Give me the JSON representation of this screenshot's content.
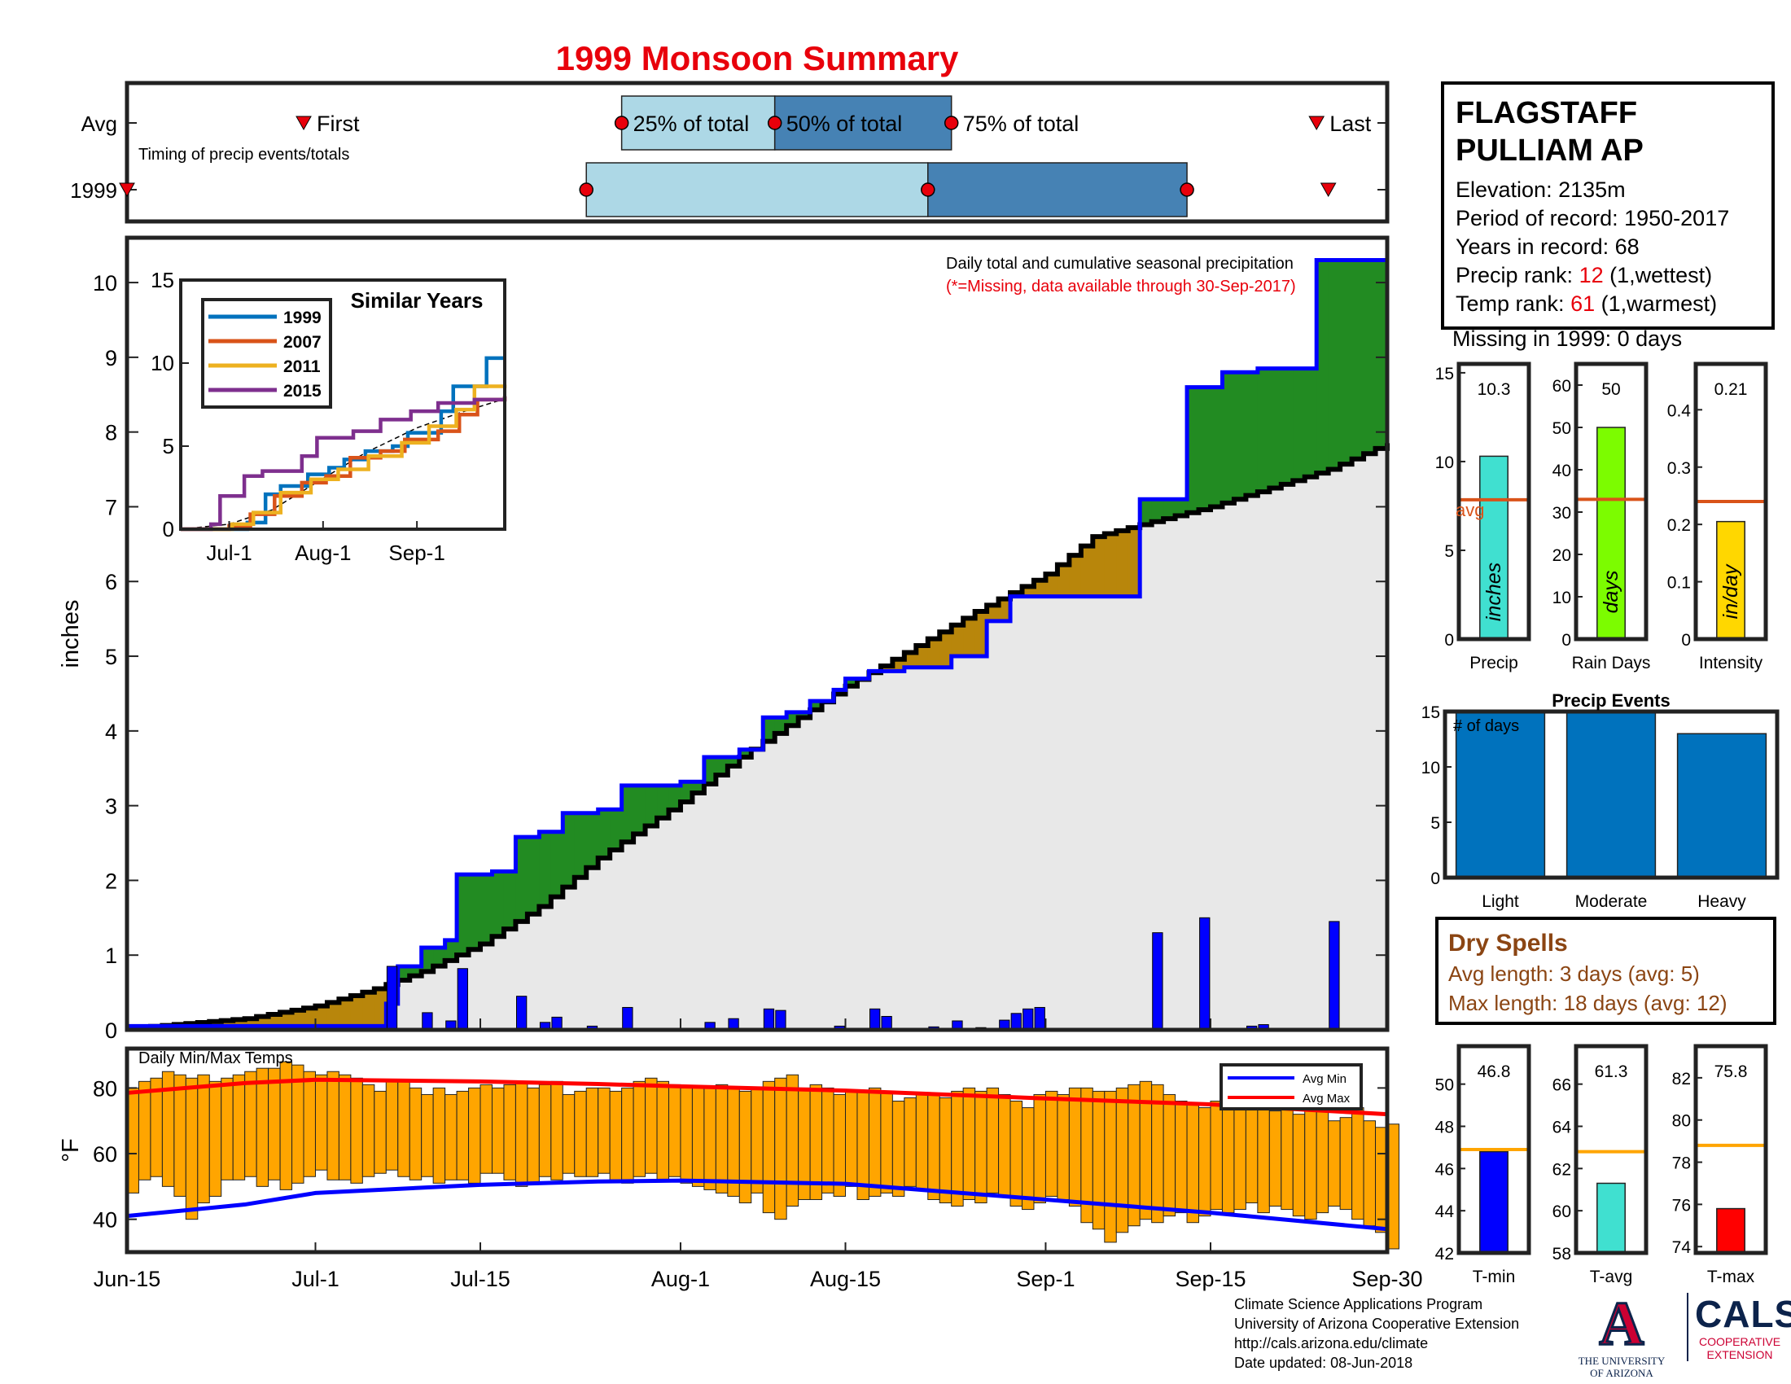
{
  "title": "1999 Monsoon Summary",
  "station": {
    "name_line1": "FLAGSTAFF",
    "name_line2": "PULLIAM AP",
    "elevation": "Elevation: 2135m",
    "period": "Period of record: 1950-2017",
    "years": "Years in record: 68",
    "precip_rank_label": "Precip rank: ",
    "precip_rank_value": "12",
    "precip_rank_note": " (1,wettest)",
    "temp_rank_label": "Temp rank: ",
    "temp_rank_value": "61",
    "temp_rank_note": " (1,warmest)",
    "missing": "Missing in 1999: 0 days"
  },
  "dry_spells": {
    "title": "Dry Spells",
    "avg_length": "Avg length: 3 days (avg: 5)",
    "max_length": "Max length: 18 days (avg: 12)"
  },
  "credits": {
    "line1": "Climate Science Applications Program",
    "line2": "University of Arizona Cooperative Extension",
    "line3": "http://cals.arizona.edu/climate",
    "line4": " Date updated: 08-Jun-2018"
  },
  "logos": {
    "ua_mark": "A",
    "ua_line1": "THE UNIVERSITY",
    "ua_line2": "OF ARIZONA",
    "cals_mark": "CALS",
    "cals_line1": "COOPERATIVE",
    "cals_line2": "EXTENSION"
  },
  "colors": {
    "title": "#e8000b",
    "wet_fill": "#228b22",
    "dry_fill": "#b8860b",
    "season_line": "#0000ff",
    "avg_line": "#000000",
    "normal_fill": "#e8e8e8",
    "bar_light": "#add8e6",
    "bar_dark": "#4682b4",
    "temp_bar": "#ffa500",
    "avg_max": "#ff0000",
    "avg_min": "#0000ff",
    "dry_text": "#8b4513"
  },
  "chart_data": [
    {
      "id": "timing",
      "type": "table",
      "row_labels": [
        "Avg",
        "1999"
      ],
      "note": "Timing of precip events/totals",
      "avg_markers": {
        "first": "First",
        "q25": "25% of total",
        "q50": "50% of total",
        "q75": "75% of total",
        "last": "Last"
      },
      "avg_dates": {
        "first": "2017-06-30",
        "q25": "2017-07-27",
        "q50": "2017-08-09",
        "q75": "2017-08-24",
        "last": "2017-09-24"
      },
      "year_dates": {
        "first": "2017-06-15",
        "q25": "2017-07-24",
        "q50": "2017-08-22",
        "q75": "2017-09-13",
        "last": "2017-09-25"
      },
      "xlim": [
        "2017-06-15",
        "2017-09-30"
      ]
    },
    {
      "id": "cumulative",
      "type": "area",
      "note_title": "Daily total and cumulative seasonal precipitation",
      "note_missing": "(*=Missing, data available through 30-Sep-2017)",
      "ylabel": "inches",
      "ylim": [
        0,
        10.6
      ],
      "yticks": [
        0,
        1,
        2,
        3,
        4,
        5,
        6,
        7,
        8,
        9,
        10
      ],
      "xlim": [
        "2017-06-15",
        "2017-09-30"
      ],
      "xticks": [
        {
          "date": "2017-06-15",
          "label": "Jun-15"
        },
        {
          "date": "2017-07-01",
          "label": "Jul-1"
        },
        {
          "date": "2017-07-15",
          "label": "Jul-15"
        },
        {
          "date": "2017-08-01",
          "label": "Aug-1"
        },
        {
          "date": "2017-08-15",
          "label": "Aug-15"
        },
        {
          "date": "2017-09-01",
          "label": "Sep-1"
        },
        {
          "date": "2017-09-15",
          "label": "Sep-15"
        },
        {
          "date": "2017-09-30",
          "label": "Sep-30"
        }
      ],
      "avg_cumulative": {
        "x": [
          "2017-06-15",
          "2017-06-25",
          "2017-07-01",
          "2017-07-06",
          "2017-07-10",
          "2017-07-15",
          "2017-07-20",
          "2017-07-25",
          "2017-08-01",
          "2017-08-06",
          "2017-08-15",
          "2017-08-20",
          "2017-08-26",
          "2017-09-01",
          "2017-09-05",
          "2017-09-15",
          "2017-09-25",
          "2017-09-30"
        ],
        "y": [
          0.02,
          0.15,
          0.32,
          0.55,
          0.78,
          1.15,
          1.65,
          2.3,
          3.05,
          3.65,
          4.6,
          5.05,
          5.6,
          6.1,
          6.6,
          7.0,
          7.5,
          7.85
        ]
      },
      "year_cumulative": {
        "x": [
          "2017-06-15",
          "2017-07-07",
          "2017-07-08",
          "2017-07-10",
          "2017-07-12",
          "2017-07-13",
          "2017-07-16",
          "2017-07-18",
          "2017-07-20",
          "2017-07-22",
          "2017-07-25",
          "2017-07-27",
          "2017-08-01",
          "2017-08-03",
          "2017-08-06",
          "2017-08-08",
          "2017-08-10",
          "2017-08-12",
          "2017-08-14",
          "2017-08-15",
          "2017-08-17",
          "2017-08-20",
          "2017-08-24",
          "2017-08-27",
          "2017-08-29",
          "2017-09-09",
          "2017-09-13",
          "2017-09-16",
          "2017-09-19",
          "2017-09-24",
          "2017-09-30"
        ],
        "y": [
          0.05,
          0.35,
          0.85,
          1.1,
          1.2,
          2.08,
          2.12,
          2.58,
          2.65,
          2.9,
          2.95,
          3.27,
          3.32,
          3.65,
          3.75,
          4.18,
          4.25,
          4.4,
          4.55,
          4.7,
          4.8,
          4.85,
          5.0,
          5.47,
          5.8,
          7.1,
          8.6,
          8.8,
          8.85,
          10.3,
          10.3
        ]
      },
      "daily": {
        "x": [
          "2017-07-07",
          "2017-07-10",
          "2017-07-12",
          "2017-07-13",
          "2017-07-18",
          "2017-07-20",
          "2017-07-21",
          "2017-07-24",
          "2017-07-27",
          "2017-08-03",
          "2017-08-05",
          "2017-08-08",
          "2017-08-09",
          "2017-08-14",
          "2017-08-17",
          "2017-08-18",
          "2017-08-22",
          "2017-08-24",
          "2017-08-26",
          "2017-08-28",
          "2017-08-29",
          "2017-08-30",
          "2017-08-31",
          "2017-09-10",
          "2017-09-14",
          "2017-09-18",
          "2017-09-19",
          "2017-09-25"
        ],
        "y": [
          0.85,
          0.23,
          0.12,
          0.82,
          0.45,
          0.1,
          0.17,
          0.05,
          0.3,
          0.1,
          0.15,
          0.28,
          0.26,
          0.05,
          0.28,
          0.18,
          0.04,
          0.12,
          0.03,
          0.13,
          0.22,
          0.28,
          0.3,
          1.3,
          1.5,
          0.05,
          0.07,
          1.45
        ]
      }
    },
    {
      "id": "similar_years",
      "type": "line",
      "title": "Similar Years",
      "ylim": [
        0,
        15
      ],
      "yticks": [
        0,
        5,
        10,
        15
      ],
      "xlim": [
        "2017-06-15",
        "2017-09-30"
      ],
      "xticks": [
        {
          "date": "2017-07-01",
          "label": "Jul-1"
        },
        {
          "date": "2017-08-01",
          "label": "Aug-1"
        },
        {
          "date": "2017-09-01",
          "label": "Sep-1"
        }
      ],
      "avg": {
        "x": [
          "2017-06-15",
          "2017-07-01",
          "2017-07-15",
          "2017-08-01",
          "2017-08-15",
          "2017-09-01",
          "2017-09-15",
          "2017-09-30"
        ],
        "y": [
          0,
          0.3,
          1.15,
          3.05,
          4.6,
          6.1,
          7.0,
          7.85
        ]
      },
      "series": [
        {
          "name": "1999",
          "color": "#0072bd",
          "x": [
            "2017-06-15",
            "2017-07-07",
            "2017-07-13",
            "2017-07-18",
            "2017-07-27",
            "2017-08-03",
            "2017-08-08",
            "2017-08-15",
            "2017-08-24",
            "2017-08-29",
            "2017-09-09",
            "2017-09-13",
            "2017-09-24",
            "2017-09-30"
          ],
          "y": [
            0,
            0.4,
            2.1,
            2.6,
            3.3,
            3.7,
            4.2,
            4.7,
            5.0,
            5.8,
            7.1,
            8.6,
            10.3,
            10.3
          ]
        },
        {
          "name": "2007",
          "color": "#d95319",
          "x": [
            "2017-06-15",
            "2017-07-01",
            "2017-07-08",
            "2017-07-16",
            "2017-07-25",
            "2017-08-02",
            "2017-08-10",
            "2017-08-20",
            "2017-08-28",
            "2017-09-08",
            "2017-09-15",
            "2017-09-21",
            "2017-09-30"
          ],
          "y": [
            0,
            0.2,
            0.9,
            2.0,
            2.8,
            3.2,
            4.3,
            4.7,
            5.4,
            5.9,
            6.9,
            7.8,
            8.0
          ]
        },
        {
          "name": "2011",
          "color": "#edb120",
          "x": [
            "2017-06-15",
            "2017-07-02",
            "2017-07-09",
            "2017-07-18",
            "2017-07-28",
            "2017-08-06",
            "2017-08-16",
            "2017-08-27",
            "2017-09-05",
            "2017-09-14",
            "2017-09-20",
            "2017-09-30"
          ],
          "y": [
            0,
            0.3,
            1.0,
            2.2,
            3.0,
            3.6,
            4.4,
            5.2,
            6.2,
            7.2,
            8.6,
            8.7
          ]
        },
        {
          "name": "2015",
          "color": "#7e2f8e",
          "x": [
            "2017-06-15",
            "2017-06-25",
            "2017-06-28",
            "2017-07-06",
            "2017-07-12",
            "2017-07-25",
            "2017-07-30",
            "2017-08-11",
            "2017-08-20",
            "2017-08-30",
            "2017-09-08",
            "2017-09-20",
            "2017-09-30"
          ],
          "y": [
            0,
            0.3,
            2.0,
            3.2,
            3.5,
            4.4,
            5.5,
            5.9,
            6.6,
            7.1,
            7.6,
            7.8,
            8.0
          ]
        }
      ]
    },
    {
      "id": "temps",
      "type": "bar",
      "note": "Daily Min/Max Temps",
      "ylabel": "°F",
      "ylim": [
        30,
        92
      ],
      "yticks": [
        40,
        60,
        80
      ],
      "legend": [
        "Avg Min",
        "Avg Max"
      ],
      "legend_position": "top-right",
      "avg_max": {
        "x": [
          "2017-06-15",
          "2017-06-25",
          "2017-07-01",
          "2017-07-15",
          "2017-07-25",
          "2017-08-01",
          "2017-08-15",
          "2017-09-01",
          "2017-09-15",
          "2017-09-30"
        ],
        "y": [
          78.5,
          81.5,
          82.5,
          82.0,
          81.2,
          80.5,
          79.2,
          76.8,
          75.0,
          72.0
        ]
      },
      "avg_min": {
        "x": [
          "2017-06-15",
          "2017-06-25",
          "2017-07-01",
          "2017-07-15",
          "2017-07-25",
          "2017-08-01",
          "2017-08-15",
          "2017-09-01",
          "2017-09-15",
          "2017-09-30"
        ],
        "y": [
          41.0,
          44.5,
          48.0,
          50.5,
          51.5,
          51.8,
          50.8,
          46.0,
          42.0,
          37.0
        ]
      },
      "daily_max": [
        80,
        82,
        83,
        85,
        84,
        83,
        84,
        82,
        83,
        84,
        85,
        86,
        86,
        88,
        87,
        85,
        84,
        85,
        84,
        83,
        81,
        79,
        82,
        82,
        80,
        78,
        80,
        78,
        79,
        80,
        81,
        80,
        81,
        82,
        80,
        81,
        82,
        78,
        79,
        80,
        80,
        79,
        80,
        82,
        83,
        82,
        81,
        80,
        80,
        80,
        81,
        80,
        79,
        80,
        82,
        83,
        84,
        80,
        81,
        80,
        78,
        79,
        79,
        80,
        79,
        76,
        77,
        78,
        78,
        77,
        79,
        80,
        79,
        80,
        78,
        76,
        74,
        78,
        79,
        78,
        80,
        80,
        79,
        79,
        80,
        81,
        82,
        81,
        78,
        76,
        75,
        74,
        76,
        78,
        77,
        76,
        74,
        73,
        74,
        72,
        73,
        74,
        70,
        71,
        74,
        70,
        68,
        69
      ],
      "daily_min": [
        48,
        52,
        53,
        50,
        47,
        40,
        45,
        47,
        52,
        52,
        53,
        50,
        52,
        49,
        51,
        53,
        55,
        52,
        52,
        51,
        53,
        54,
        55,
        53,
        52,
        53,
        51,
        52,
        52,
        51,
        54,
        54,
        52,
        50,
        51,
        53,
        52,
        54,
        53,
        53,
        54,
        52,
        51,
        53,
        54,
        52,
        53,
        51,
        50,
        49,
        48,
        47,
        45,
        48,
        42,
        40,
        44,
        46,
        46,
        48,
        47,
        50,
        46,
        47,
        48,
        47,
        50,
        49,
        46,
        45,
        44,
        46,
        45,
        48,
        47,
        44,
        43,
        45,
        47,
        46,
        44,
        39,
        37,
        33,
        36,
        38,
        40,
        39,
        41,
        42,
        39,
        41,
        43,
        42,
        43,
        45,
        42,
        44,
        43,
        41,
        40,
        42,
        44,
        43,
        40,
        38,
        36,
        31
      ]
    },
    {
      "id": "precip_total",
      "type": "bar",
      "xlabel": "Precip",
      "series_label": "inches",
      "value": 10.3,
      "value_label": "10.3",
      "avg": 7.85,
      "avg_label": "avg",
      "ylim": [
        0,
        15.5
      ],
      "yticks": [
        0,
        5,
        10,
        15
      ],
      "color": "#40e0d0"
    },
    {
      "id": "rain_days",
      "type": "bar",
      "xlabel": "Rain Days",
      "series_label": "days",
      "value": 50,
      "value_label": "50",
      "avg": 33,
      "ylim": [
        0,
        65
      ],
      "yticks": [
        0,
        10,
        20,
        30,
        40,
        50,
        60
      ],
      "color": "#7cfc00"
    },
    {
      "id": "intensity",
      "type": "bar",
      "xlabel": "Intensity",
      "series_label": "in/day",
      "value": 0.205,
      "value_label": "0.21",
      "avg": 0.24,
      "ylim": [
        0,
        0.48
      ],
      "yticks": [
        0,
        0.1,
        0.2,
        0.3,
        0.4
      ],
      "color": "#ffd700"
    },
    {
      "id": "precip_events",
      "type": "bar",
      "title": "Precip Events",
      "ylabel": "# of days",
      "categories": [
        "Light",
        "Moderate",
        "Heavy"
      ],
      "values": [
        15,
        15,
        13
      ],
      "ylim": [
        0,
        15
      ],
      "yticks": [
        0,
        5,
        10,
        15
      ],
      "color": "#0072bd"
    },
    {
      "id": "t_min",
      "type": "bar",
      "xlabel": "T-min",
      "value": 46.8,
      "value_label": "46.8",
      "avg": 46.9,
      "ylim": [
        42,
        51.8
      ],
      "yticks": [
        42,
        44,
        46,
        48,
        50
      ],
      "color": "#0000ff"
    },
    {
      "id": "t_avg",
      "type": "bar",
      "xlabel": "T-avg",
      "value": 61.3,
      "value_label": "61.3",
      "avg": 62.8,
      "ylim": [
        58,
        67.8
      ],
      "yticks": [
        58,
        60,
        62,
        64,
        66
      ],
      "color": "#40e0d0"
    },
    {
      "id": "t_max",
      "type": "bar",
      "xlabel": "T-max",
      "value": 75.8,
      "value_label": "75.8",
      "avg": 78.8,
      "ylim": [
        73.7,
        83.5
      ],
      "yticks": [
        74,
        76,
        78,
        80,
        82
      ],
      "color": "#ff0000"
    }
  ]
}
